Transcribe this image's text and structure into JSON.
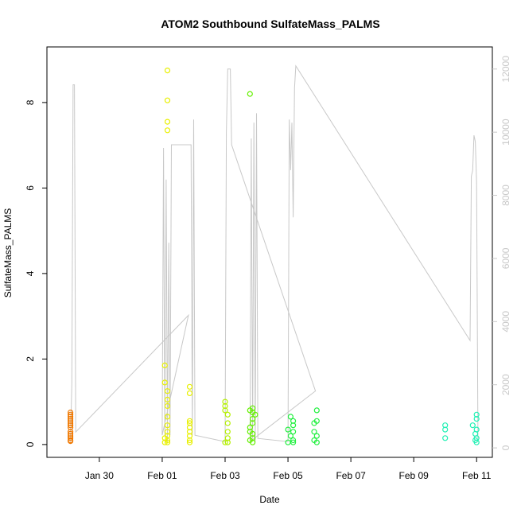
{
  "chart_data": {
    "type": "scatter",
    "title": "ATOM2 Southbound SulfateMass_PALMS",
    "xlabel": "Date",
    "ylabel": "SulfateMass_PALMS",
    "xlim": [
      "2017-01-28T08:00",
      "2017-02-11T12:00"
    ],
    "ylim": [
      -0.3,
      9.3
    ],
    "y2lim": [
      -300,
      12700
    ],
    "x_ticks": [
      "Jan 30",
      "Feb 01",
      "Feb 03",
      "Feb 05",
      "Feb 07",
      "Feb 09",
      "Feb 11"
    ],
    "x_tick_dates": [
      "2017-01-30",
      "2017-02-01",
      "2017-02-03",
      "2017-02-05",
      "2017-02-07",
      "2017-02-09",
      "2017-02-11"
    ],
    "y_ticks": [
      "0",
      "2",
      "4",
      "6",
      "8"
    ],
    "y2_ticks": [
      "0",
      "2000",
      "4000",
      "6000",
      "8000",
      "10000",
      "12000"
    ],
    "colors": {
      "axis": "#000000",
      "altitude_line": "#c8c8c8",
      "right_axis": "#c8c8c8"
    },
    "series": [
      {
        "color": "#f07800",
        "points": [
          [
            "2017-01-29T02:00",
            0.75
          ],
          [
            "2017-01-29T02:00",
            0.7
          ],
          [
            "2017-01-29T02:00",
            0.65
          ],
          [
            "2017-01-29T02:00",
            0.6
          ],
          [
            "2017-01-29T02:00",
            0.55
          ],
          [
            "2017-01-29T02:00",
            0.5
          ],
          [
            "2017-01-29T02:00",
            0.45
          ],
          [
            "2017-01-29T02:00",
            0.4
          ],
          [
            "2017-01-29T02:00",
            0.3
          ],
          [
            "2017-01-29T02:00",
            0.25
          ],
          [
            "2017-01-29T02:00",
            0.2
          ],
          [
            "2017-01-29T02:00",
            0.15
          ],
          [
            "2017-01-29T02:00",
            0.1
          ],
          [
            "2017-01-29T02:00",
            0.08
          ]
        ]
      },
      {
        "color": "#e8f000",
        "points": [
          [
            "2017-02-01T04:00",
            8.75
          ],
          [
            "2017-02-01T04:00",
            8.05
          ],
          [
            "2017-02-01T04:00",
            7.55
          ],
          [
            "2017-02-01T04:00",
            7.35
          ],
          [
            "2017-02-01T02:00",
            1.85
          ],
          [
            "2017-02-01T02:00",
            1.45
          ],
          [
            "2017-02-01T04:00",
            1.25
          ],
          [
            "2017-02-01T04:00",
            1.05
          ],
          [
            "2017-02-01T04:00",
            0.9
          ],
          [
            "2017-02-01T04:00",
            0.65
          ],
          [
            "2017-02-01T04:00",
            0.45
          ],
          [
            "2017-02-01T04:00",
            0.3
          ],
          [
            "2017-02-01T04:00",
            0.2
          ],
          [
            "2017-02-01T04:00",
            0.1
          ],
          [
            "2017-02-01T04:00",
            0.05
          ],
          [
            "2017-02-01T02:00",
            0.15
          ],
          [
            "2017-02-01T02:00",
            0.05
          ],
          [
            "2017-02-01T21:00",
            1.35
          ],
          [
            "2017-02-01T21:00",
            1.2
          ],
          [
            "2017-02-01T21:00",
            0.55
          ],
          [
            "2017-02-01T21:00",
            0.5
          ],
          [
            "2017-02-01T21:00",
            0.4
          ],
          [
            "2017-02-01T21:00",
            0.3
          ],
          [
            "2017-02-01T21:00",
            0.2
          ],
          [
            "2017-02-01T21:00",
            0.1
          ],
          [
            "2017-02-01T21:00",
            0.05
          ]
        ]
      },
      {
        "color": "#b4f000",
        "points": [
          [
            "2017-02-03T00:00",
            1.0
          ],
          [
            "2017-02-03T00:00",
            0.9
          ],
          [
            "2017-02-03T00:00",
            0.8
          ],
          [
            "2017-02-03T02:00",
            0.7
          ],
          [
            "2017-02-03T02:00",
            0.5
          ],
          [
            "2017-02-03T02:00",
            0.3
          ],
          [
            "2017-02-03T02:00",
            0.15
          ],
          [
            "2017-02-03T02:00",
            0.05
          ],
          [
            "2017-02-03T00:00",
            0.05
          ]
        ]
      },
      {
        "color": "#64f000",
        "points": [
          [
            "2017-02-03T19:00",
            8.2
          ],
          [
            "2017-02-03T19:00",
            0.8
          ],
          [
            "2017-02-03T21:00",
            0.85
          ],
          [
            "2017-02-03T21:00",
            0.75
          ],
          [
            "2017-02-03T23:00",
            0.7
          ],
          [
            "2017-02-03T21:00",
            0.6
          ],
          [
            "2017-02-03T21:00",
            0.5
          ],
          [
            "2017-02-03T19:00",
            0.4
          ],
          [
            "2017-02-03T19:00",
            0.3
          ],
          [
            "2017-02-03T21:00",
            0.25
          ],
          [
            "2017-02-03T21:00",
            0.15
          ],
          [
            "2017-02-03T19:00",
            0.1
          ],
          [
            "2017-02-03T21:00",
            0.05
          ]
        ]
      },
      {
        "color": "#22f040",
        "points": [
          [
            "2017-02-05T02:00",
            0.65
          ],
          [
            "2017-02-05T04:00",
            0.55
          ],
          [
            "2017-02-05T04:00",
            0.45
          ],
          [
            "2017-02-05T00:00",
            0.35
          ],
          [
            "2017-02-05T04:00",
            0.3
          ],
          [
            "2017-02-05T02:00",
            0.2
          ],
          [
            "2017-02-05T04:00",
            0.1
          ],
          [
            "2017-02-05T00:00",
            0.05
          ],
          [
            "2017-02-05T04:00",
            0.05
          ],
          [
            "2017-02-05T22:00",
            0.8
          ],
          [
            "2017-02-05T22:00",
            0.55
          ],
          [
            "2017-02-05T20:00",
            0.5
          ],
          [
            "2017-02-05T20:00",
            0.3
          ],
          [
            "2017-02-05T22:00",
            0.2
          ],
          [
            "2017-02-05T20:00",
            0.1
          ],
          [
            "2017-02-05T22:00",
            0.05
          ]
        ]
      },
      {
        "color": "#22f0b4",
        "points": [
          [
            "2017-02-10T00:00",
            0.45
          ],
          [
            "2017-02-10T00:00",
            0.35
          ],
          [
            "2017-02-10T00:00",
            0.15
          ],
          [
            "2017-02-11T00:00",
            0.7
          ],
          [
            "2017-02-11T00:00",
            0.6
          ],
          [
            "2017-02-10T21:00",
            0.45
          ],
          [
            "2017-02-11T00:00",
            0.35
          ],
          [
            "2017-02-10T23:00",
            0.25
          ],
          [
            "2017-02-11T00:00",
            0.15
          ],
          [
            "2017-02-10T23:00",
            0.1
          ],
          [
            "2017-02-11T00:00",
            0.05
          ]
        ]
      }
    ],
    "altitude_line": [
      [
        "2017-01-29T02:00",
        200
      ],
      [
        "2017-01-29T03:00",
        2000
      ],
      [
        "2017-01-29T04:00",
        11500
      ],
      [
        "2017-01-29T05:00",
        11500
      ],
      [
        "2017-01-29T06:00",
        500
      ],
      [
        "2017-02-01T20:00",
        4200
      ],
      [
        "2017-02-01T00:00",
        400
      ],
      [
        "2017-02-01T01:00",
        9500
      ],
      [
        "2017-02-01T02:00",
        400
      ],
      [
        "2017-02-01T03:00",
        8500
      ],
      [
        "2017-02-01T04:00",
        200
      ],
      [
        "2017-02-01T05:00",
        6500
      ],
      [
        "2017-02-01T06:00",
        400
      ],
      [
        "2017-02-01T07:00",
        9600
      ],
      [
        "2017-02-01T22:00",
        9600
      ],
      [
        "2017-02-01T23:00",
        400
      ],
      [
        "2017-02-02T00:00",
        10400
      ],
      [
        "2017-02-02T01:00",
        400
      ],
      [
        "2017-02-03T00:00",
        200
      ],
      [
        "2017-02-03T01:00",
        10000
      ],
      [
        "2017-02-03T02:00",
        12000
      ],
      [
        "2017-02-03T04:00",
        12000
      ],
      [
        "2017-02-03T05:00",
        9600
      ],
      [
        "2017-02-05T21:00",
        1800
      ],
      [
        "2017-02-03T19:00",
        200
      ],
      [
        "2017-02-03T20:00",
        9800
      ],
      [
        "2017-02-03T21:00",
        300
      ],
      [
        "2017-02-03T22:00",
        10300
      ],
      [
        "2017-02-03T23:00",
        200
      ],
      [
        "2017-02-04T00:00",
        10600
      ],
      [
        "2017-02-04T01:00",
        300
      ],
      [
        "2017-02-05T00:00",
        200
      ],
      [
        "2017-02-05T01:00",
        10400
      ],
      [
        "2017-02-05T02:00",
        8800
      ],
      [
        "2017-02-05T03:00",
        10300
      ],
      [
        "2017-02-05T04:00",
        7300
      ],
      [
        "2017-02-05T05:00",
        11400
      ],
      [
        "2017-02-05T06:00",
        12100
      ],
      [
        "2017-02-10T19:00",
        3400
      ],
      [
        "2017-02-10T20:00",
        8600
      ],
      [
        "2017-02-10T21:00",
        8800
      ],
      [
        "2017-02-10T22:00",
        9900
      ],
      [
        "2017-02-10T23:00",
        9700
      ],
      [
        "2017-02-11T00:00",
        8400
      ],
      [
        "2017-02-11T01:00",
        300
      ]
    ]
  }
}
